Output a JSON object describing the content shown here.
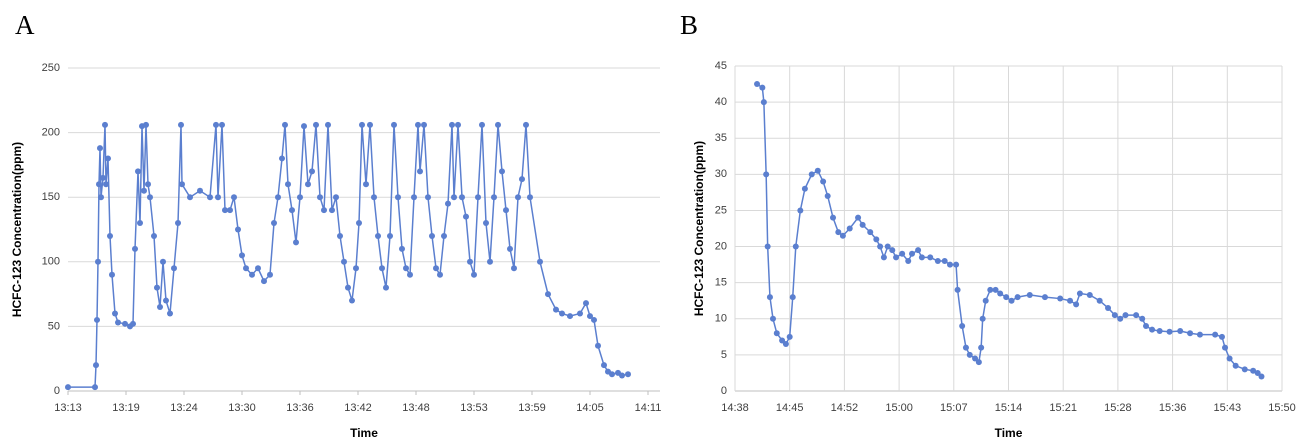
{
  "chart_data": [
    {
      "type": "line",
      "panel_label": "A",
      "x_label": "Time",
      "y_label": "HCFC-123  Concentration(ppm)",
      "color": "#5b7fcf",
      "grid": true,
      "xgrid": false,
      "xlim": [
        793,
        852.2
      ],
      "ylim": [
        0,
        250
      ],
      "yticks": [
        0,
        50,
        100,
        150,
        200,
        250
      ],
      "xticks": [
        {
          "value": 793,
          "label": "13:13"
        },
        {
          "value": 798.8,
          "label": "13:19"
        },
        {
          "value": 804.6,
          "label": "13:24"
        },
        {
          "value": 810.4,
          "label": "13:30"
        },
        {
          "value": 816.2,
          "label": "13:36"
        },
        {
          "value": 822,
          "label": "13:42"
        },
        {
          "value": 827.8,
          "label": "13:48"
        },
        {
          "value": 833.6,
          "label": "13:53"
        },
        {
          "value": 839.4,
          "label": "13:59"
        },
        {
          "value": 845.2,
          "label": "14:05"
        },
        {
          "value": 851,
          "label": "14:11"
        }
      ],
      "x": [
        793.0,
        795.7,
        795.8,
        795.9,
        796.0,
        796.1,
        796.2,
        796.3,
        796.5,
        796.7,
        796.8,
        797.0,
        797.2,
        797.4,
        797.7,
        798.0,
        798.7,
        799.2,
        799.5,
        799.7,
        800.0,
        800.2,
        800.4,
        800.6,
        800.8,
        801.0,
        801.2,
        801.6,
        801.9,
        802.2,
        802.5,
        802.8,
        803.2,
        803.6,
        804.0,
        804.3,
        804.4,
        805.2,
        806.2,
        807.2,
        807.8,
        808.0,
        808.4,
        808.7,
        809.2,
        809.6,
        810.0,
        810.4,
        810.8,
        811.4,
        812.0,
        812.6,
        813.2,
        813.6,
        814.0,
        814.4,
        814.7,
        815.0,
        815.4,
        815.8,
        816.2,
        816.6,
        817.0,
        817.4,
        817.8,
        818.2,
        818.6,
        819.0,
        819.4,
        819.8,
        820.2,
        820.6,
        821.0,
        821.4,
        821.8,
        822.1,
        822.4,
        822.8,
        823.2,
        823.6,
        824.0,
        824.4,
        824.8,
        825.2,
        825.6,
        826.0,
        826.4,
        826.8,
        827.2,
        827.6,
        828.0,
        828.2,
        828.6,
        829.0,
        829.4,
        829.8,
        830.2,
        830.6,
        831.0,
        831.4,
        831.6,
        832.0,
        832.4,
        832.8,
        833.2,
        833.6,
        834.0,
        834.4,
        834.8,
        835.2,
        835.6,
        836.0,
        836.4,
        836.8,
        837.2,
        837.6,
        838.0,
        838.4,
        838.8,
        839.2,
        840.2,
        841.0,
        841.8,
        842.4,
        843.2,
        844.2,
        844.8,
        845.2,
        845.6,
        846.0,
        846.6,
        847.0,
        847.4,
        848.0,
        848.4,
        849.0
      ],
      "values": [
        3,
        3,
        20,
        55,
        100,
        160,
        188,
        150,
        165,
        206,
        160,
        180,
        120,
        90,
        60,
        53,
        52,
        50,
        52,
        110,
        170,
        130,
        205,
        155,
        206,
        160,
        150,
        120,
        80,
        65,
        100,
        70,
        60,
        95,
        130,
        206,
        160,
        150,
        155,
        150,
        206,
        150,
        206,
        140,
        140,
        150,
        125,
        105,
        95,
        90,
        95,
        85,
        90,
        130,
        150,
        180,
        206,
        160,
        140,
        115,
        150,
        205,
        160,
        170,
        206,
        150,
        140,
        206,
        140,
        150,
        120,
        100,
        80,
        70,
        95,
        130,
        206,
        160,
        206,
        150,
        120,
        95,
        80,
        120,
        206,
        150,
        110,
        95,
        90,
        150,
        206,
        170,
        206,
        150,
        120,
        95,
        90,
        120,
        145,
        206,
        150,
        206,
        150,
        135,
        100,
        90,
        150,
        206,
        130,
        100,
        150,
        206,
        170,
        140,
        110,
        95,
        150,
        164,
        206,
        150,
        100,
        75,
        63,
        60,
        58,
        60,
        68,
        58,
        55,
        35,
        20,
        15,
        13,
        14,
        12,
        13
      ]
    },
    {
      "type": "line",
      "panel_label": "B",
      "x_label": "Time",
      "y_label": "HCFC-123  Concentration(ppm)",
      "color": "#5b7fcf",
      "grid": true,
      "xgrid": true,
      "xlim": [
        878,
        950
      ],
      "ylim": [
        0,
        45
      ],
      "yticks": [
        0,
        5,
        10,
        15,
        20,
        25,
        30,
        35,
        40,
        45
      ],
      "xticks": [
        {
          "value": 878,
          "label": "14:38"
        },
        {
          "value": 885.2,
          "label": "14:45"
        },
        {
          "value": 892.4,
          "label": "14:52"
        },
        {
          "value": 899.6,
          "label": "15:00"
        },
        {
          "value": 906.8,
          "label": "15:07"
        },
        {
          "value": 914,
          "label": "15:14"
        },
        {
          "value": 921.2,
          "label": "15:21"
        },
        {
          "value": 928.4,
          "label": "15:28"
        },
        {
          "value": 935.6,
          "label": "15:36"
        },
        {
          "value": 942.8,
          "label": "15:43"
        },
        {
          "value": 950,
          "label": "15:50"
        }
      ],
      "x": [
        880.9,
        881.6,
        881.8,
        882.1,
        882.3,
        882.6,
        883.0,
        883.5,
        884.2,
        884.7,
        885.2,
        885.6,
        886.0,
        886.6,
        887.2,
        888.1,
        888.9,
        889.6,
        890.2,
        890.9,
        891.6,
        892.2,
        893.1,
        894.2,
        894.8,
        895.8,
        896.6,
        897.1,
        897.6,
        898.1,
        898.7,
        899.2,
        900.0,
        900.8,
        901.3,
        902.1,
        902.6,
        903.7,
        904.7,
        905.6,
        906.3,
        907.1,
        907.3,
        907.9,
        908.4,
        908.9,
        909.6,
        910.1,
        910.4,
        910.6,
        911.0,
        911.6,
        912.3,
        912.9,
        913.7,
        914.4,
        915.2,
        916.8,
        918.8,
        920.8,
        922.1,
        922.9,
        923.4,
        924.7,
        926.0,
        927.1,
        928.0,
        928.7,
        929.4,
        930.8,
        931.6,
        932.1,
        932.9,
        933.9,
        935.2,
        936.6,
        937.9,
        939.2,
        941.2,
        942.1,
        942.5,
        943.1,
        943.9,
        945.1,
        946.2,
        946.8,
        947.3
      ],
      "values": [
        42.5,
        42,
        40,
        30,
        20,
        13,
        10,
        8,
        7,
        6.5,
        7.5,
        13,
        20,
        25,
        28,
        30,
        30.5,
        29,
        27,
        24,
        22,
        21.5,
        22.5,
        24,
        23,
        22,
        21,
        20,
        18.5,
        20,
        19.5,
        18.5,
        19,
        18,
        19,
        19.5,
        18.5,
        18.5,
        18,
        18,
        17.5,
        17.5,
        14,
        9,
        6,
        5,
        4.5,
        4,
        6,
        10,
        12.5,
        14,
        14,
        13.5,
        13,
        12.5,
        13,
        13.3,
        13,
        12.8,
        12.5,
        12,
        13.5,
        13.3,
        12.5,
        11.5,
        10.5,
        10,
        10.5,
        10.5,
        10,
        9,
        8.5,
        8.3,
        8.2,
        8.3,
        8,
        7.8,
        7.8,
        7.5,
        6,
        4.5,
        3.5,
        3,
        2.8,
        2.5,
        2
      ]
    }
  ]
}
